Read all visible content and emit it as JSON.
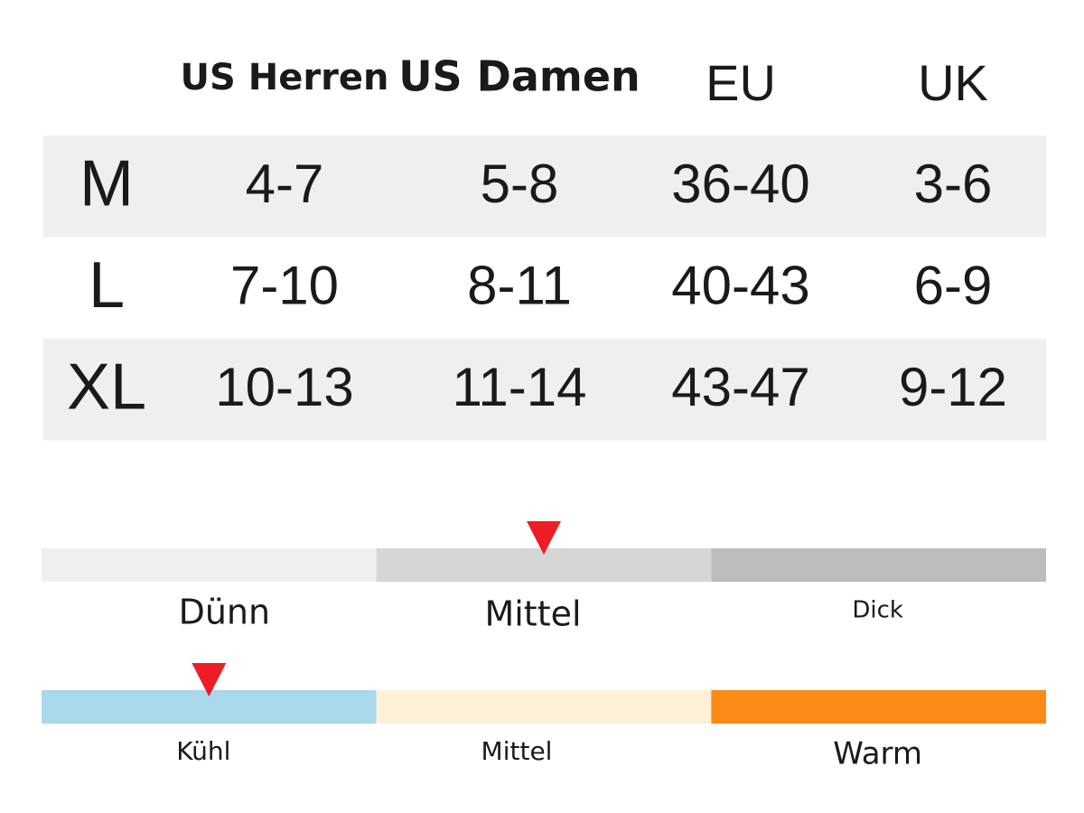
{
  "table": {
    "header": [
      "US Herren",
      "US Damen",
      "EU",
      "UK"
    ],
    "rows": [
      [
        "M",
        "4-7",
        "5-8",
        "36-40",
        "3-6"
      ],
      [
        "L",
        "7-10",
        "8-11",
        "40-43",
        "6-9"
      ],
      [
        "XL",
        "10-13",
        "11-14",
        "43-47",
        "9-12"
      ]
    ]
  },
  "thickness": {
    "labels": [
      "Dünn",
      "Mittel",
      "Dick"
    ],
    "colors": [
      "#efefef",
      "#d6d6d6",
      "#bdbdbd"
    ],
    "selected": 1
  },
  "warmth": {
    "labels": [
      "Kühl",
      "Mittel",
      "Warm"
    ],
    "colors": [
      "#a8d8ea",
      "#fdf0d6",
      "#fb8a17"
    ],
    "selected": 0
  }
}
